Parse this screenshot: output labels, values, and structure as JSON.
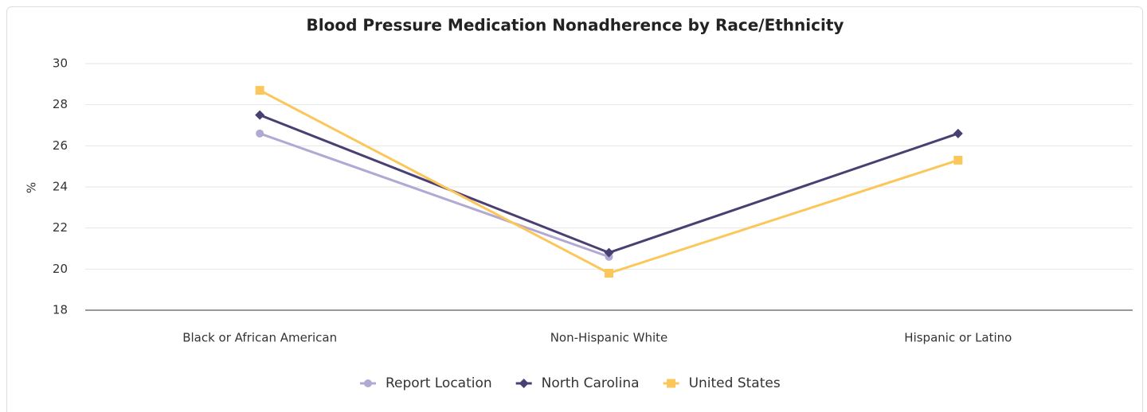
{
  "chart_data": {
    "type": "line",
    "title": "Blood Pressure Medication Nonadherence by Race/Ethnicity",
    "y_label": "%",
    "categories": [
      "Black or African American",
      "Non-Hispanic White",
      "Hispanic or Latino"
    ],
    "series": [
      {
        "name": "Report Location",
        "color": "#b1a8d3",
        "marker": "circle",
        "values": [
          26.6,
          20.6,
          null
        ]
      },
      {
        "name": "North Carolina",
        "color": "#4a3f72",
        "marker": "diamond",
        "values": [
          27.5,
          20.8,
          26.6
        ]
      },
      {
        "name": "United States",
        "color": "#fcc75a",
        "marker": "square",
        "values": [
          28.7,
          19.8,
          25.3
        ]
      }
    ],
    "ylim": [
      18,
      30
    ],
    "yticks": [
      18,
      20,
      22,
      24,
      26,
      28,
      30
    ],
    "grid": true,
    "legend": "bottom"
  }
}
